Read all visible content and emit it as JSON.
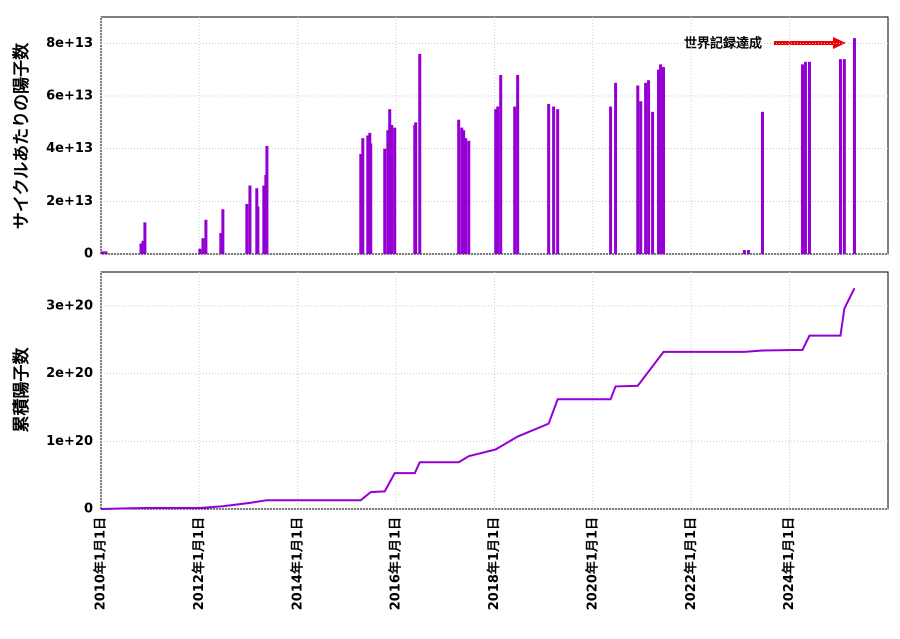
{
  "chart_data": [
    {
      "type": "bar",
      "y_label": "サイクルあたりの陽子数",
      "annotation": "世界記録達成",
      "color": "#9400d3",
      "grid": true,
      "xlim": [
        "2010-01-01",
        "2026-01-01"
      ],
      "ylim": [
        0,
        90000000000000
      ],
      "yticks": [
        0,
        {
          "value": 20000000000000,
          "label": "2e+13"
        },
        {
          "value": 40000000000000,
          "label": "4e+13"
        },
        {
          "value": 60000000000000,
          "label": "6e+13"
        },
        {
          "value": 80000000000000,
          "label": "8e+13"
        }
      ],
      "x": [
        "2010-01-15",
        "2010-02-07",
        "2010-10-25",
        "2010-11-09",
        "2010-11-23",
        "2012-01-05",
        "2012-01-28",
        "2012-02-19",
        "2012-06-09",
        "2012-06-24",
        "2012-12-19",
        "2013-01-11",
        "2013-03-03",
        "2013-03-11",
        "2013-04-24",
        "2013-05-09",
        "2013-05-17",
        "2015-04-14",
        "2015-04-29",
        "2015-06-05",
        "2015-06-20",
        "2015-06-27",
        "2015-10-09",
        "2015-11-01",
        "2015-11-15",
        "2015-11-30",
        "2015-12-22",
        "2016-05-19",
        "2016-05-26",
        "2016-06-25",
        "2017-04-10",
        "2017-05-03",
        "2017-05-17",
        "2017-06-01",
        "2017-06-24",
        "2018-01-10",
        "2018-01-25",
        "2018-02-16",
        "2018-05-31",
        "2018-06-22",
        "2019-02-07",
        "2019-03-16",
        "2019-04-15",
        "2020-05-12",
        "2020-06-18",
        "2020-11-30",
        "2020-12-22",
        "2021-01-27",
        "2021-02-18",
        "2021-03-20",
        "2021-05-03",
        "2021-05-18",
        "2021-06-09",
        "2023-01-31",
        "2023-03-02",
        "2023-06-14",
        "2024-04-06",
        "2024-04-28",
        "2024-05-28",
        "2025-01-13",
        "2025-02-11",
        "2025-04-27"
      ],
      "values": [
        1000000000000,
        1000000000000,
        4000000000000,
        5000000000000,
        12000000000000,
        2000000000000,
        6000000000000,
        13000000000000,
        8000000000000,
        17000000000000,
        19000000000000,
        26000000000000,
        25000000000000,
        18000000000000,
        26000000000000,
        30000000000000,
        41000000000000,
        38000000000000,
        44000000000000,
        45000000000000,
        46000000000000,
        42000000000000,
        40000000000000,
        47000000000000,
        55000000000000,
        49000000000000,
        48000000000000,
        49000000000000,
        50000000000000,
        76000000000000,
        51000000000000,
        48000000000000,
        47000000000000,
        44000000000000,
        43000000000000,
        55000000000000,
        56000000000000,
        68000000000000,
        56000000000000,
        68000000000000,
        57000000000000,
        56000000000000,
        55000000000000,
        56000000000000,
        65000000000000,
        64000000000000,
        58000000000000,
        65000000000000,
        66000000000000,
        54000000000000,
        70000000000000,
        72000000000000,
        71000000000000,
        1500000000000,
        1500000000000,
        54000000000000,
        72000000000000,
        73000000000000,
        73000000000000,
        74000000000000,
        74000000000000,
        82000000000000
      ]
    },
    {
      "type": "line",
      "y_label": "累積陽子数",
      "color": "#9400d3",
      "grid": true,
      "xlim": [
        "2010-01-01",
        "2026-01-01"
      ],
      "xticks": [
        {
          "value": "2010-01-01",
          "label": "2010年1月1日"
        },
        {
          "value": "2012-01-01",
          "label": "2012年1月1日"
        },
        {
          "value": "2014-01-01",
          "label": "2014年1月1日"
        },
        {
          "value": "2016-01-01",
          "label": "2016年1月1日"
        },
        {
          "value": "2018-01-01",
          "label": "2018年1月1日"
        },
        {
          "value": "2020-01-01",
          "label": "2020年1月1日"
        },
        {
          "value": "2022-01-01",
          "label": "2022年1月1日"
        },
        {
          "value": "2024-01-01",
          "label": "2024年1月1日"
        }
      ],
      "ylim": [
        0,
        350000000000000000000
      ],
      "yticks": [
        0,
        {
          "value": 100000000000000000000,
          "label": "1e+20"
        },
        {
          "value": 200000000000000000000,
          "label": "2e+20"
        },
        {
          "value": 300000000000000000000,
          "label": "3e+20"
        }
      ],
      "x": [
        "2010-01-01",
        "2010-11-23",
        "2012-01-05",
        "2012-06-24",
        "2013-01-11",
        "2013-05-17",
        "2015-04-14",
        "2015-06-27",
        "2015-10-09",
        "2015-12-22",
        "2016-05-19",
        "2016-06-25",
        "2017-04-10",
        "2017-06-24",
        "2018-01-10",
        "2018-06-22",
        "2019-02-07",
        "2019-04-15",
        "2020-05-12",
        "2020-06-18",
        "2020-11-30",
        "2021-06-09",
        "2023-01-31",
        "2023-06-14",
        "2024-04-06",
        "2024-05-28",
        "2025-01-13",
        "2025-02-11",
        "2025-04-27"
      ],
      "values": [
        0,
        1500000000000000000,
        1500000000000000000,
        4000000000000000000,
        9000000000000000000,
        13000000000000000000,
        13000000000000000000,
        25000000000000000000,
        26000000000000000000,
        53000000000000000000,
        53000000000000000000,
        69000000000000000000,
        69000000000000000000,
        78000000000000000000,
        88000000000000000000,
        107000000000000000000,
        126000000000000000000,
        162000000000000000000,
        162000000000000000000,
        181000000000000000000,
        182000000000000000000,
        232000000000000000000,
        232000000000000000000,
        234000000000000000000,
        235000000000000000000,
        256000000000000000000,
        256000000000000000000,
        296000000000000000000,
        326000000000000000000
      ]
    }
  ]
}
